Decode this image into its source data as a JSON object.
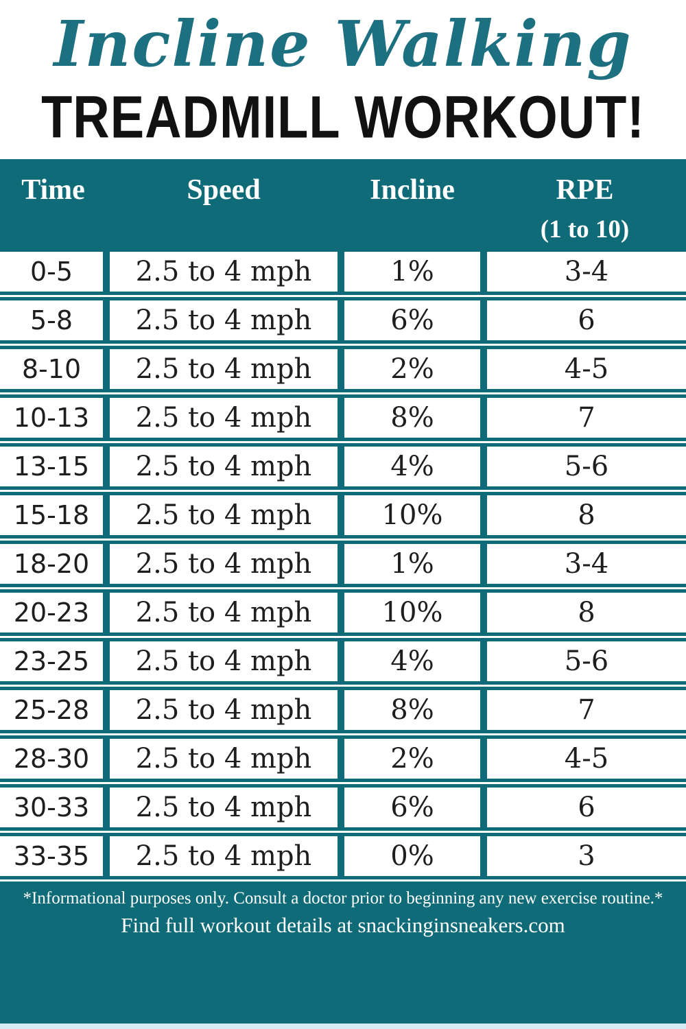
{
  "title": {
    "script_line": "Incline Walking",
    "bold_line": "TREADMILL WORKOUT!"
  },
  "table": {
    "columns": [
      {
        "label": "Time"
      },
      {
        "label": "Speed"
      },
      {
        "label": "Incline"
      },
      {
        "label": "RPE",
        "sublabel": "(1 to 10)"
      }
    ],
    "rows": [
      {
        "time": "0-5",
        "speed": "2.5 to 4 mph",
        "incline": "1%",
        "rpe": "3-4"
      },
      {
        "time": "5-8",
        "speed": "2.5 to 4 mph",
        "incline": "6%",
        "rpe": "6"
      },
      {
        "time": "8-10",
        "speed": "2.5 to 4 mph",
        "incline": "2%",
        "rpe": "4-5"
      },
      {
        "time": "10-13",
        "speed": "2.5 to 4 mph",
        "incline": "8%",
        "rpe": "7"
      },
      {
        "time": "13-15",
        "speed": "2.5 to 4 mph",
        "incline": "4%",
        "rpe": "5-6"
      },
      {
        "time": "15-18",
        "speed": "2.5 to 4 mph",
        "incline": "10%",
        "rpe": "8"
      },
      {
        "time": "18-20",
        "speed": "2.5 to 4 mph",
        "incline": "1%",
        "rpe": "3-4"
      },
      {
        "time": "20-23",
        "speed": "2.5 to 4 mph",
        "incline": "10%",
        "rpe": "8"
      },
      {
        "time": "23-25",
        "speed": "2.5 to 4 mph",
        "incline": "4%",
        "rpe": "5-6"
      },
      {
        "time": "25-28",
        "speed": "2.5 to 4 mph",
        "incline": "8%",
        "rpe": "7"
      },
      {
        "time": "28-30",
        "speed": "2.5 to 4 mph",
        "incline": "2%",
        "rpe": "4-5"
      },
      {
        "time": "30-33",
        "speed": "2.5 to 4 mph",
        "incline": "6%",
        "rpe": "6"
      },
      {
        "time": "33-35",
        "speed": "2.5 to 4 mph",
        "incline": "0%",
        "rpe": "3"
      }
    ]
  },
  "footer": {
    "disclaimer": "*Informational purposes only. Consult a doctor prior to beginning any new exercise routine.*",
    "details": "Find full workout details at snackinginsneakers.com"
  },
  "colors": {
    "teal": "#0e6b77",
    "title_script_teal": "#1d7080",
    "title_text_black": "#111111",
    "bottom_strip_light_blue": "#d6ecf4",
    "row_background": "#ffffff"
  }
}
